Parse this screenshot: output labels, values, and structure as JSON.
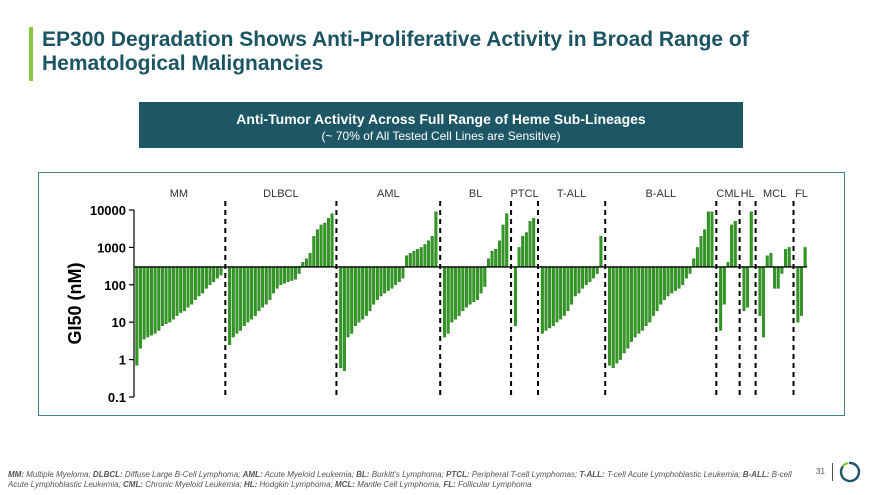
{
  "header": {
    "title": "EP300 Degradation Shows Anti-Proliferative Activity in Broad Range of Hematological Malignancies"
  },
  "banner": {
    "heading": "Anti-Tumor Activity Across Full Range of Heme Sub-Lineages",
    "subheading": "(~ 70% of All Tested Cell Lines are Sensitive)"
  },
  "chart_data": {
    "type": "bar",
    "title": "Anti-Tumor Activity Across Full Range of Heme Sub-Lineages",
    "ylabel": "GI50 (nM)",
    "yscale": "log",
    "ylim": [
      0.1,
      10000
    ],
    "baseline": 300,
    "yticks": [
      "0.1",
      "1",
      "10",
      "100",
      "1000",
      "10000"
    ],
    "bar_color": "#2e9a1f",
    "groups": [
      {
        "name": "MM",
        "values": [
          0.7,
          2,
          3.5,
          4,
          4.5,
          5,
          6,
          8,
          9,
          10,
          12,
          15,
          18,
          20,
          25,
          30,
          40,
          50,
          60,
          80,
          100,
          120,
          150,
          180
        ]
      },
      {
        "name": "DLBCL",
        "values": [
          2.5,
          4,
          5,
          6,
          8,
          10,
          12,
          15,
          20,
          25,
          30,
          40,
          60,
          80,
          100,
          110,
          120,
          130,
          140,
          200,
          400,
          500,
          700,
          2000,
          3000,
          4000,
          4500,
          6000,
          8000
        ]
      },
      {
        "name": "AML",
        "values": [
          0.6,
          0.5,
          4,
          5,
          8,
          10,
          12,
          15,
          20,
          30,
          40,
          50,
          60,
          70,
          80,
          100,
          120,
          150,
          600,
          700,
          800,
          900,
          1000,
          1200,
          1500,
          2000,
          9000
        ]
      },
      {
        "name": "BL",
        "values": [
          4,
          5,
          10,
          12,
          15,
          20,
          25,
          30,
          35,
          40,
          60,
          90,
          500,
          800,
          900,
          1500,
          4000,
          8000
        ]
      },
      {
        "name": "PTCL",
        "values": [
          8,
          1000,
          2000,
          2500,
          5000,
          6000
        ]
      },
      {
        "name": "T-ALL",
        "values": [
          5,
          6,
          7,
          8,
          10,
          12,
          15,
          20,
          30,
          50,
          60,
          80,
          100,
          120,
          150,
          200,
          2000
        ]
      },
      {
        "name": "B-ALL",
        "values": [
          0.7,
          0.6,
          0.8,
          1,
          1.5,
          2,
          3,
          4,
          5,
          6,
          8,
          10,
          15,
          20,
          30,
          40,
          50,
          60,
          70,
          80,
          100,
          150,
          200,
          500,
          1000,
          2000,
          3000,
          9000,
          9000
        ]
      },
      {
        "name": "CML",
        "values": [
          6,
          30,
          400,
          4000,
          5000
        ]
      },
      {
        "name": "HL",
        "values": [
          20,
          25,
          9000
        ]
      },
      {
        "name": "MCL",
        "values": [
          15,
          4,
          600,
          700,
          80,
          80,
          200,
          900,
          1000
        ]
      },
      {
        "name": "FL",
        "values": [
          10,
          15,
          1000
        ]
      }
    ]
  },
  "footnote": {
    "items": [
      {
        "abbr": "MM",
        "text": "Multiple Myeloma;"
      },
      {
        "abbr": "DLBCL",
        "text": "Diffuse Large B-Cell Lymphoma;"
      },
      {
        "abbr": "AML",
        "text": "Acute Myeloid Leukemia;"
      },
      {
        "abbr": "BL",
        "text": "Burkitt's Lymphoma;"
      },
      {
        "abbr": "PTCL",
        "text": "Peripheral T-cell Lymphomas;"
      },
      {
        "abbr": "T-ALL",
        "text": "T-cell Acute Lymphoblastic Leukemia;"
      },
      {
        "abbr": "B-ALL",
        "text": "B-cell Acute Lymphoblastic Leukemia;"
      },
      {
        "abbr": "CML",
        "text": "Chronic Myeloid Leukemia;"
      },
      {
        "abbr": "HL",
        "text": "Hodgkin Lymphoma;"
      },
      {
        "abbr": "MCL",
        "text": "Mantle Cell Lymphoma,"
      },
      {
        "abbr": "FL",
        "text": "Follicular Lymphoma"
      }
    ]
  },
  "page": {
    "number": "31"
  },
  "colors": {
    "title": "#1b5563",
    "accent": "#8cc63f",
    "banner": "#1d5665",
    "bars": "#2e9a1f"
  }
}
